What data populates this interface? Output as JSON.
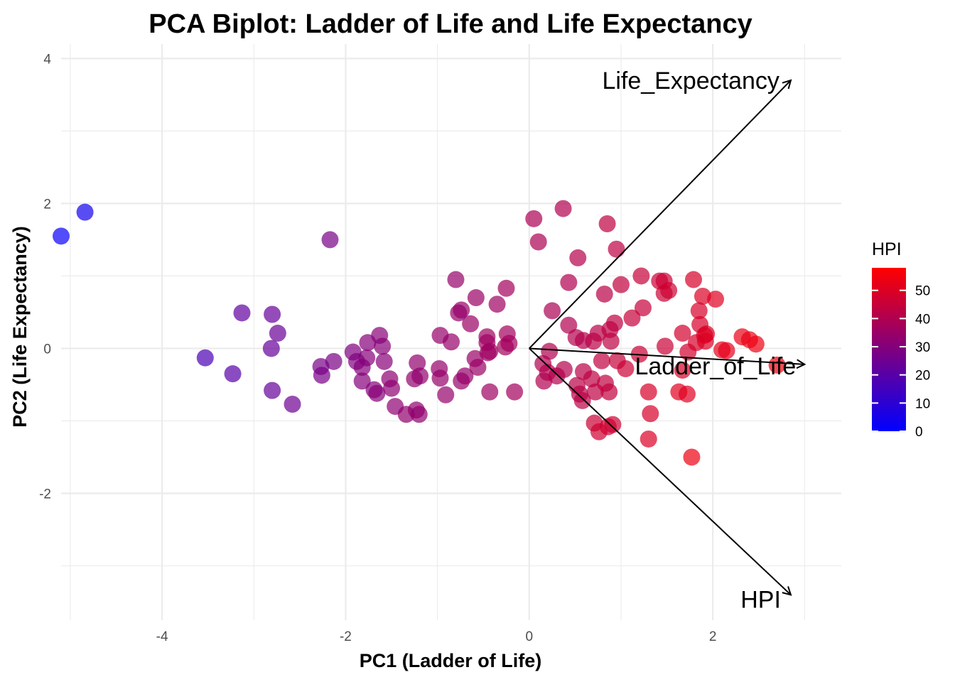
{
  "chart_data": {
    "type": "scatter",
    "title": "PCA Biplot: Ladder of Life and Life Expectancy",
    "xlabel": "PC1 (Ladder of Life)",
    "ylabel": "PC2 (Life Expectancy)",
    "xlim": [
      -5.1,
      3.4
    ],
    "ylim": [
      -3.75,
      4.2
    ],
    "x_ticks": [
      -4,
      -2,
      0,
      2
    ],
    "y_ticks": [
      -2,
      0,
      2,
      4
    ],
    "x_tick_labels": [
      "-4",
      "-2",
      "0",
      "2"
    ],
    "y_tick_labels": [
      "-2",
      "0",
      "2",
      "4"
    ],
    "grid": true,
    "color": {
      "variable": "HPI",
      "title": "HPI",
      "low_color": "#0000ff",
      "high_color": "#ff0000",
      "range": [
        0,
        58
      ],
      "ticks": [
        0,
        10,
        20,
        30,
        40,
        50
      ],
      "tick_labels": [
        "0",
        "10",
        "20",
        "30",
        "40",
        "50"
      ],
      "legend_position": "right"
    },
    "points": [
      {
        "x": -5.1,
        "y": 1.55,
        "hpi": 2
      },
      {
        "x": -4.84,
        "y": 1.88,
        "hpi": 4
      },
      {
        "x": -2.17,
        "y": 1.5,
        "hpi": 27
      },
      {
        "x": -3.13,
        "y": 0.49,
        "hpi": 22
      },
      {
        "x": -2.8,
        "y": 0.47,
        "hpi": 23
      },
      {
        "x": -2.74,
        "y": 0.21,
        "hpi": 24
      },
      {
        "x": -2.81,
        "y": 0.0,
        "hpi": 23
      },
      {
        "x": -3.53,
        "y": -0.13,
        "hpi": 17
      },
      {
        "x": -3.23,
        "y": -0.35,
        "hpi": 20
      },
      {
        "x": -2.8,
        "y": -0.58,
        "hpi": 23
      },
      {
        "x": -2.58,
        "y": -0.77,
        "hpi": 25
      },
      {
        "x": -2.27,
        "y": -0.25,
        "hpi": 27
      },
      {
        "x": -2.26,
        "y": -0.37,
        "hpi": 27
      },
      {
        "x": -2.13,
        "y": -0.18,
        "hpi": 28
      },
      {
        "x": -1.92,
        "y": -0.05,
        "hpi": 29
      },
      {
        "x": -1.88,
        "y": -0.18,
        "hpi": 29
      },
      {
        "x": -1.82,
        "y": -0.26,
        "hpi": 30
      },
      {
        "x": -1.77,
        "y": -0.13,
        "hpi": 30
      },
      {
        "x": -1.82,
        "y": -0.45,
        "hpi": 30
      },
      {
        "x": -1.76,
        "y": 0.08,
        "hpi": 30
      },
      {
        "x": -1.63,
        "y": 0.18,
        "hpi": 31
      },
      {
        "x": -1.6,
        "y": 0.03,
        "hpi": 31
      },
      {
        "x": -1.58,
        "y": -0.18,
        "hpi": 31
      },
      {
        "x": -1.69,
        "y": -0.57,
        "hpi": 30
      },
      {
        "x": -1.66,
        "y": -0.62,
        "hpi": 31
      },
      {
        "x": -1.52,
        "y": -0.42,
        "hpi": 32
      },
      {
        "x": -1.5,
        "y": -0.55,
        "hpi": 32
      },
      {
        "x": -1.46,
        "y": -0.8,
        "hpi": 32
      },
      {
        "x": -1.34,
        "y": -0.91,
        "hpi": 33
      },
      {
        "x": -1.25,
        "y": -0.42,
        "hpi": 33
      },
      {
        "x": -1.22,
        "y": -0.2,
        "hpi": 33
      },
      {
        "x": -1.19,
        "y": -0.38,
        "hpi": 33
      },
      {
        "x": -1.23,
        "y": -0.85,
        "hpi": 33
      },
      {
        "x": -1.2,
        "y": -0.91,
        "hpi": 33
      },
      {
        "x": -0.97,
        "y": 0.18,
        "hpi": 34
      },
      {
        "x": -0.98,
        "y": -0.28,
        "hpi": 34
      },
      {
        "x": -0.97,
        "y": -0.41,
        "hpi": 34
      },
      {
        "x": -0.91,
        "y": -0.64,
        "hpi": 34
      },
      {
        "x": -0.85,
        "y": 0.09,
        "hpi": 34
      },
      {
        "x": -0.8,
        "y": 0.95,
        "hpi": 34
      },
      {
        "x": -0.77,
        "y": 0.49,
        "hpi": 34
      },
      {
        "x": -0.74,
        "y": 0.53,
        "hpi": 34
      },
      {
        "x": -0.74,
        "y": -0.45,
        "hpi": 34
      },
      {
        "x": -0.7,
        "y": -0.38,
        "hpi": 34
      },
      {
        "x": -0.64,
        "y": 0.34,
        "hpi": 35
      },
      {
        "x": -0.58,
        "y": 0.7,
        "hpi": 35
      },
      {
        "x": -0.59,
        "y": -0.14,
        "hpi": 35
      },
      {
        "x": -0.56,
        "y": -0.26,
        "hpi": 35
      },
      {
        "x": -0.46,
        "y": 0.16,
        "hpi": 36
      },
      {
        "x": -0.46,
        "y": 0.08,
        "hpi": 36
      },
      {
        "x": -0.45,
        "y": -0.06,
        "hpi": 36
      },
      {
        "x": -0.43,
        "y": -0.04,
        "hpi": 36
      },
      {
        "x": -0.43,
        "y": -0.6,
        "hpi": 36
      },
      {
        "x": -0.35,
        "y": 0.61,
        "hpi": 36
      },
      {
        "x": -0.25,
        "y": 0.83,
        "hpi": 37
      },
      {
        "x": -0.24,
        "y": 0.2,
        "hpi": 37
      },
      {
        "x": -0.26,
        "y": 0.02,
        "hpi": 37
      },
      {
        "x": -0.22,
        "y": 0.07,
        "hpi": 37
      },
      {
        "x": -0.16,
        "y": -0.6,
        "hpi": 37
      },
      {
        "x": 0.05,
        "y": 1.79,
        "hpi": 39
      },
      {
        "x": 0.1,
        "y": 1.47,
        "hpi": 39
      },
      {
        "x": 0.37,
        "y": 1.93,
        "hpi": 40
      },
      {
        "x": 0.53,
        "y": 1.25,
        "hpi": 41
      },
      {
        "x": 0.85,
        "y": 1.72,
        "hpi": 43
      },
      {
        "x": 0.95,
        "y": 1.37,
        "hpi": 43
      },
      {
        "x": 0.43,
        "y": 0.91,
        "hpi": 40
      },
      {
        "x": 0.25,
        "y": 0.52,
        "hpi": 39
      },
      {
        "x": 0.43,
        "y": 0.32,
        "hpi": 40
      },
      {
        "x": 0.51,
        "y": 0.15,
        "hpi": 41
      },
      {
        "x": 0.59,
        "y": 0.11,
        "hpi": 41
      },
      {
        "x": 0.7,
        "y": 0.1,
        "hpi": 42
      },
      {
        "x": 0.75,
        "y": 0.21,
        "hpi": 42
      },
      {
        "x": 0.82,
        "y": 0.75,
        "hpi": 42
      },
      {
        "x": 0.88,
        "y": 0.26,
        "hpi": 43
      },
      {
        "x": 0.93,
        "y": 0.35,
        "hpi": 43
      },
      {
        "x": 0.89,
        "y": 0.1,
        "hpi": 43
      },
      {
        "x": 1.0,
        "y": 0.88,
        "hpi": 44
      },
      {
        "x": 1.12,
        "y": 0.42,
        "hpi": 45
      },
      {
        "x": 1.22,
        "y": 1.0,
        "hpi": 45
      },
      {
        "x": 1.24,
        "y": 0.56,
        "hpi": 45
      },
      {
        "x": 1.42,
        "y": 0.93,
        "hpi": 46
      },
      {
        "x": 1.47,
        "y": 0.93,
        "hpi": 46
      },
      {
        "x": 1.47,
        "y": 0.76,
        "hpi": 46
      },
      {
        "x": 1.52,
        "y": 0.8,
        "hpi": 47
      },
      {
        "x": 1.67,
        "y": 0.21,
        "hpi": 48
      },
      {
        "x": 1.79,
        "y": 0.95,
        "hpi": 49
      },
      {
        "x": 1.89,
        "y": 0.72,
        "hpi": 50
      },
      {
        "x": 2.03,
        "y": 0.68,
        "hpi": 51
      },
      {
        "x": 1.85,
        "y": 0.52,
        "hpi": 49
      },
      {
        "x": 1.86,
        "y": 0.33,
        "hpi": 49
      },
      {
        "x": 1.93,
        "y": 0.2,
        "hpi": 50
      },
      {
        "x": 1.91,
        "y": 0.18,
        "hpi": 50
      },
      {
        "x": 1.48,
        "y": 0.03,
        "hpi": 46
      },
      {
        "x": 1.82,
        "y": 0.08,
        "hpi": 49
      },
      {
        "x": 1.92,
        "y": 0.1,
        "hpi": 50
      },
      {
        "x": 2.1,
        "y": -0.02,
        "hpi": 52
      },
      {
        "x": 2.15,
        "y": -0.03,
        "hpi": 52
      },
      {
        "x": 2.32,
        "y": 0.16,
        "hpi": 53
      },
      {
        "x": 2.4,
        "y": 0.12,
        "hpi": 53
      },
      {
        "x": 2.47,
        "y": 0.06,
        "hpi": 54
      },
      {
        "x": 2.7,
        "y": -0.23,
        "hpi": 55
      },
      {
        "x": 1.2,
        "y": -0.08,
        "hpi": 46
      },
      {
        "x": 1.73,
        "y": -0.05,
        "hpi": 48
      },
      {
        "x": 0.22,
        "y": -0.04,
        "hpi": 40
      },
      {
        "x": 0.15,
        "y": -0.21,
        "hpi": 40
      },
      {
        "x": 0.2,
        "y": -0.33,
        "hpi": 40
      },
      {
        "x": 0.16,
        "y": -0.45,
        "hpi": 40
      },
      {
        "x": 0.3,
        "y": -0.38,
        "hpi": 41
      },
      {
        "x": 0.38,
        "y": -0.29,
        "hpi": 41
      },
      {
        "x": 0.52,
        "y": -0.51,
        "hpi": 42
      },
      {
        "x": 0.55,
        "y": -0.63,
        "hpi": 42
      },
      {
        "x": 0.58,
        "y": -0.72,
        "hpi": 42
      },
      {
        "x": 0.59,
        "y": -0.32,
        "hpi": 42
      },
      {
        "x": 0.68,
        "y": -0.42,
        "hpi": 43
      },
      {
        "x": 0.72,
        "y": -0.6,
        "hpi": 43
      },
      {
        "x": 0.83,
        "y": -0.48,
        "hpi": 44
      },
      {
        "x": 0.87,
        "y": -0.6,
        "hpi": 44
      },
      {
        "x": 0.79,
        "y": -0.17,
        "hpi": 44
      },
      {
        "x": 0.96,
        "y": -0.17,
        "hpi": 45
      },
      {
        "x": 1.05,
        "y": -0.28,
        "hpi": 46
      },
      {
        "x": 0.71,
        "y": -1.03,
        "hpi": 46
      },
      {
        "x": 0.76,
        "y": -1.15,
        "hpi": 47
      },
      {
        "x": 0.86,
        "y": -1.08,
        "hpi": 47
      },
      {
        "x": 0.91,
        "y": -1.05,
        "hpi": 47
      },
      {
        "x": 1.3,
        "y": -0.6,
        "hpi": 49
      },
      {
        "x": 1.32,
        "y": -0.9,
        "hpi": 49
      },
      {
        "x": 1.3,
        "y": -1.25,
        "hpi": 50
      },
      {
        "x": 1.63,
        "y": -0.6,
        "hpi": 51
      },
      {
        "x": 1.72,
        "y": -0.63,
        "hpi": 51
      },
      {
        "x": 1.77,
        "y": -1.5,
        "hpi": 54
      },
      {
        "x": 1.67,
        "y": -0.3,
        "hpi": 50
      }
    ],
    "loadings": [
      {
        "name": "Life_Expectancy",
        "x": 2.85,
        "y": 3.7
      },
      {
        "name": "Ladder_of_Life",
        "x": 3.0,
        "y": -0.22
      },
      {
        "name": "HPI",
        "x": 2.85,
        "y": -3.4
      }
    ]
  }
}
